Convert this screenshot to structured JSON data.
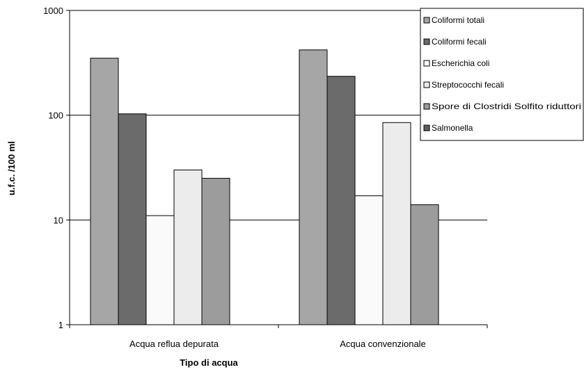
{
  "chart_data": {
    "type": "bar",
    "title": "",
    "xlabel": "Tipo di acqua",
    "ylabel": "u.f.c. /100 ml",
    "yscale": "log",
    "ylim": [
      1,
      1000
    ],
    "yticks": [
      "1",
      "10",
      "100",
      "1000"
    ],
    "grid": true,
    "legend_position": "top-right",
    "categories": [
      "Acqua reflua depurata",
      "Acqua convenzionale"
    ],
    "series": [
      {
        "name": "Coliformi totali",
        "values": [
          350,
          420
        ],
        "color": "#a6a6a6"
      },
      {
        "name": "Coliformi fecali",
        "values": [
          103,
          235
        ],
        "color": "#6b6b6b"
      },
      {
        "name": "Escherichia coli",
        "values": [
          11,
          17
        ],
        "color": "#fafafa"
      },
      {
        "name": "Streptococchi fecali",
        "values": [
          30,
          85
        ],
        "color": "#ececec"
      },
      {
        "name": "Spore di Clostridi Solfito riduttori",
        "values": [
          25,
          14
        ],
        "color": "#9c9c9c"
      },
      {
        "name": "Salmonella",
        "values": [
          null,
          null
        ],
        "color": "#5e5e5e"
      }
    ]
  }
}
